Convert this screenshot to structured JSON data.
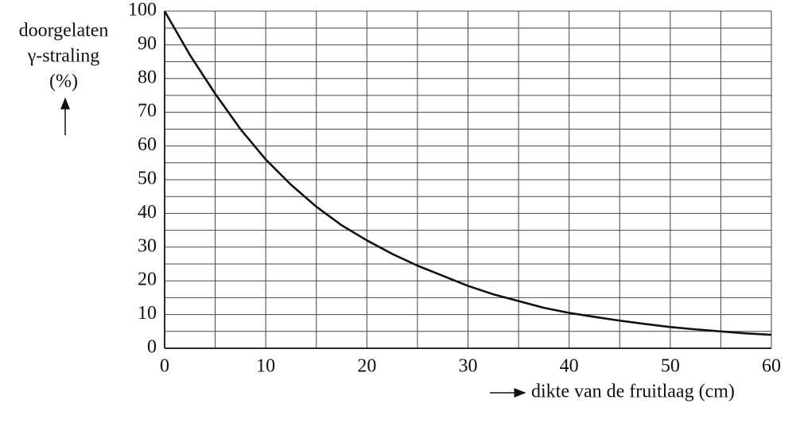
{
  "chart_data": {
    "type": "line",
    "ylabel": [
      "doorgelaten",
      "γ-straling",
      "(%)"
    ],
    "xlabel": "dikte van de fruitlaag (cm)",
    "x": [
      0,
      2.5,
      5,
      7.5,
      10,
      12.5,
      15,
      17.5,
      20,
      22.5,
      25,
      27.5,
      30,
      32.5,
      35,
      37.5,
      40,
      42.5,
      45,
      47.5,
      50,
      52.5,
      55,
      57.5,
      60
    ],
    "series": [
      {
        "color": "#111111",
        "values": [
          100,
          87,
          75.5,
          65,
          56,
          48.5,
          42,
          36.5,
          32,
          28,
          24.5,
          21.5,
          18.5,
          16,
          14,
          12,
          10.5,
          9.3,
          8.2,
          7.2,
          6.3,
          5.6,
          5,
          4.4,
          4
        ]
      }
    ],
    "xlim": [
      0,
      60
    ],
    "ylim": [
      0,
      100
    ],
    "xticks": [
      0,
      10,
      20,
      30,
      40,
      50,
      60
    ],
    "yticks": [
      0,
      10,
      20,
      30,
      40,
      50,
      60,
      70,
      80,
      90,
      100
    ],
    "minor_xticks": [
      5,
      15,
      25,
      35,
      45,
      55
    ],
    "minor_yticks": [
      5,
      15,
      25,
      35,
      45,
      55,
      65,
      75,
      85,
      95
    ],
    "grid": true
  }
}
